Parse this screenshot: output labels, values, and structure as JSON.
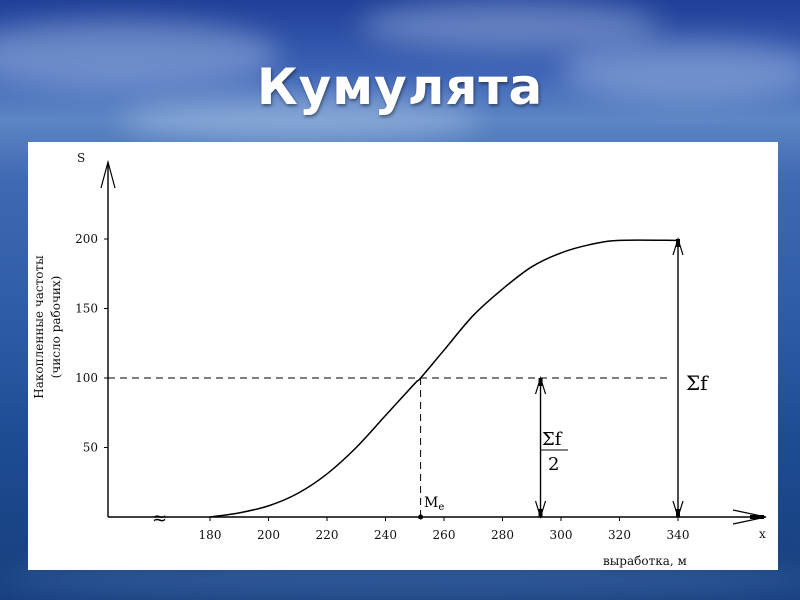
{
  "slide": {
    "title": "Кумулята"
  },
  "chart_data": {
    "type": "line",
    "title": "",
    "ylabel": "S",
    "ylabel_rotated_line1": "Накопленные частоты",
    "ylabel_rotated_line2": "(число рабочих)",
    "xlabel": "выработка, м",
    "x_axis_letter": "x",
    "xlim": [
      180,
      340
    ],
    "ylim": [
      0,
      200
    ],
    "x_ticks": [
      180,
      200,
      220,
      240,
      260,
      280,
      300,
      320,
      340
    ],
    "y_ticks": [
      50,
      100,
      150,
      200
    ],
    "series": [
      {
        "x": [
          180,
          190,
          200,
          210,
          220,
          230,
          240,
          250,
          252,
          260,
          270,
          280,
          290,
          300,
          310,
          320,
          340
        ],
        "y": [
          0,
          3,
          8,
          17,
          31,
          50,
          73,
          96,
          100,
          120,
          145,
          164,
          180,
          190,
          196,
          199,
          199
        ]
      }
    ],
    "annotations": {
      "median_label_main": "M",
      "median_label_sub": "e",
      "median_x": 252,
      "half_level": 100,
      "half_arrow_x": 293,
      "sum_label": "Σf",
      "half_label_num": "Σf",
      "half_label_den": "2",
      "axis_break": "≈"
    },
    "grid": false,
    "legend": "none"
  }
}
